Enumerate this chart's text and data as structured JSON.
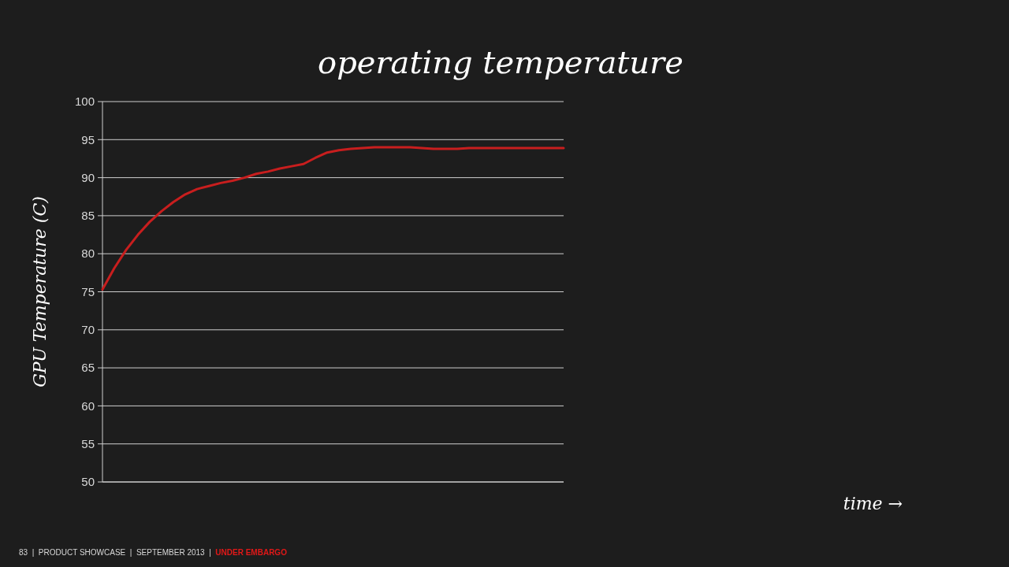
{
  "chart_data": {
    "type": "line",
    "title": "operating temperature",
    "ylabel": "GPU Temperature (C)",
    "categories": [
      null,
      null,
      null,
      null,
      null,
      null,
      null,
      null,
      null,
      null,
      null,
      null,
      null,
      null,
      null,
      null,
      null,
      null,
      null,
      null,
      null,
      null,
      null,
      null,
      null,
      null,
      null,
      null,
      null,
      null,
      null,
      null,
      null,
      null,
      null,
      null,
      null,
      null,
      null,
      null
    ],
    "series": [
      {
        "color": "#c81e1e",
        "values": [
          75.3,
          78.1,
          80.5,
          82.5,
          84.2,
          85.6,
          86.8,
          87.8,
          88.5,
          88.9,
          89.3,
          89.6,
          90.0,
          90.5,
          90.8,
          91.2,
          91.5,
          91.8,
          92.6,
          93.3,
          93.6,
          93.8,
          93.9,
          94.0,
          94.0,
          94.0,
          94.0,
          93.9,
          93.8,
          93.8,
          93.8,
          93.9,
          93.9,
          93.9,
          93.9,
          93.9,
          93.9,
          93.9,
          93.9,
          93.9
        ]
      }
    ],
    "ylim": [
      50,
      100
    ],
    "yticks": [
      50,
      55,
      60,
      65,
      70,
      75,
      80,
      85,
      90,
      95,
      100
    ],
    "grid": "y",
    "tick_labels": "y",
    "marker": "none",
    "line_style": "solid",
    "annotations": [
      "time →",
      "83  |  PRODUCT SHOWCASE  |  SEPTEMBER 2013  |",
      "UNDER EMBARGO"
    ]
  }
}
